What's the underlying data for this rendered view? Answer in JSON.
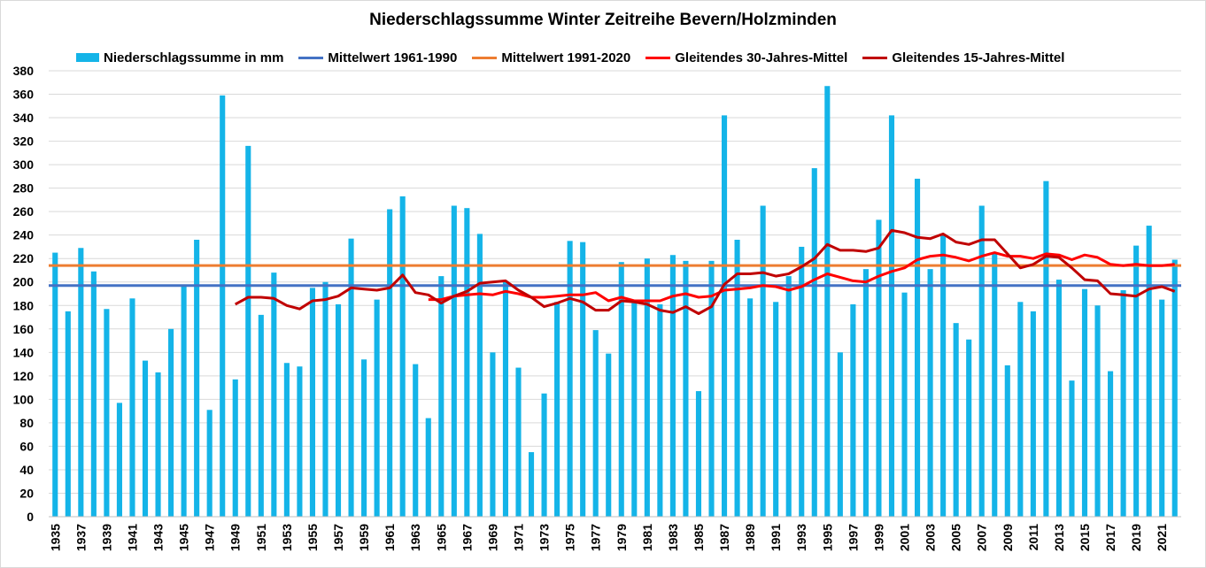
{
  "chart_data": {
    "type": "bar",
    "title": "Niederschlagssumme Winter Zeitreihe Bevern/Holzminden",
    "xlabel": "",
    "ylabel": "",
    "ylim": [
      0,
      380
    ],
    "yticks": [
      0,
      20,
      40,
      60,
      80,
      100,
      120,
      140,
      160,
      180,
      200,
      220,
      240,
      260,
      280,
      300,
      320,
      340,
      360,
      380
    ],
    "grid": true,
    "legend_position": "top",
    "x": [
      1935,
      1936,
      1937,
      1938,
      1939,
      1940,
      1941,
      1942,
      1943,
      1944,
      1945,
      1946,
      1947,
      1948,
      1949,
      1950,
      1951,
      1952,
      1953,
      1954,
      1955,
      1956,
      1957,
      1958,
      1959,
      1960,
      1961,
      1962,
      1963,
      1964,
      1965,
      1966,
      1967,
      1968,
      1969,
      1970,
      1971,
      1972,
      1973,
      1974,
      1975,
      1976,
      1977,
      1978,
      1979,
      1980,
      1981,
      1982,
      1983,
      1984,
      1985,
      1986,
      1987,
      1988,
      1989,
      1990,
      1991,
      1992,
      1993,
      1994,
      1995,
      1996,
      1997,
      1998,
      1999,
      2000,
      2001,
      2002,
      2003,
      2004,
      2005,
      2006,
      2007,
      2008,
      2009,
      2010,
      2011,
      2012,
      2013,
      2014,
      2015,
      2016,
      2017,
      2018,
      2019,
      2020,
      2021,
      2022
    ],
    "x_tick_labels": [
      "1935",
      "1937",
      "1939",
      "1941",
      "1943",
      "1945",
      "1947",
      "1949",
      "1951",
      "1953",
      "1955",
      "1957",
      "1959",
      "1961",
      "1963",
      "1965",
      "1967",
      "1969",
      "1971",
      "1973",
      "1975",
      "1977",
      "1979",
      "1981",
      "1983",
      "1985",
      "1987",
      "1989",
      "1991",
      "1993",
      "1995",
      "1997",
      "1999",
      "2001",
      "2003",
      "2005",
      "2007",
      "2009",
      "2011",
      "2013",
      "2015",
      "2017",
      "2019",
      "2021"
    ],
    "series": [
      {
        "name": "Niederschlagssumme in mm",
        "kind": "bar",
        "color": "#14b4e8",
        "values": [
          225,
          175,
          229,
          209,
          177,
          97,
          186,
          133,
          123,
          160,
          197,
          236,
          91,
          359,
          117,
          316,
          172,
          208,
          131,
          128,
          195,
          200,
          181,
          237,
          134,
          185,
          262,
          273,
          130,
          84,
          205,
          265,
          263,
          241,
          140,
          200,
          127,
          55,
          105,
          183,
          235,
          234,
          159,
          139,
          217,
          182,
          220,
          181,
          223,
          218,
          107,
          218,
          342,
          236,
          186,
          265,
          183,
          205,
          230,
          297,
          367,
          140,
          181,
          211,
          253,
          342,
          191,
          288,
          211,
          240,
          165,
          151,
          265,
          225,
          129,
          183,
          175,
          286,
          202,
          116,
          194,
          180,
          124,
          193,
          231,
          248,
          185,
          219
        ]
      },
      {
        "name": "Mittelwert 1961-1990",
        "kind": "hline",
        "color": "#4472c4",
        "value": 197
      },
      {
        "name": "Mittelwert 1991-2020",
        "kind": "hline",
        "color": "#ed7d31",
        "value": 214
      },
      {
        "name": "Gleitendes 30-Jahres-Mittel",
        "kind": "line",
        "color": "#ff0000",
        "x": [
          1964,
          1965,
          1966,
          1967,
          1968,
          1969,
          1970,
          1971,
          1972,
          1973,
          1974,
          1975,
          1976,
          1977,
          1978,
          1979,
          1980,
          1981,
          1982,
          1983,
          1984,
          1985,
          1986,
          1987,
          1988,
          1989,
          1990,
          1991,
          1992,
          1993,
          1994,
          1995,
          1996,
          1997,
          1998,
          1999,
          2000,
          2001,
          2002,
          2003,
          2004,
          2005,
          2006,
          2007,
          2008,
          2009,
          2010,
          2011,
          2012,
          2013,
          2014,
          2015,
          2016,
          2017,
          2018,
          2019,
          2020,
          2021,
          2022
        ],
        "values": [
          185,
          185,
          188,
          189,
          190,
          189,
          192,
          190,
          187,
          187,
          188,
          189,
          189,
          191,
          184,
          187,
          184,
          184,
          184,
          188,
          190,
          187,
          188,
          193,
          194,
          195,
          197,
          196,
          193,
          196,
          202,
          207,
          204,
          201,
          200,
          205,
          209,
          212,
          219,
          222,
          223,
          221,
          218,
          222,
          225,
          222,
          222,
          220,
          224,
          223,
          219,
          223,
          221,
          215,
          214,
          215,
          214,
          214,
          215
        ]
      },
      {
        "name": "Gleitendes 15-Jahres-Mittel",
        "kind": "line",
        "color": "#c00000",
        "x": [
          1949,
          1950,
          1951,
          1952,
          1953,
          1954,
          1955,
          1956,
          1957,
          1958,
          1959,
          1960,
          1961,
          1962,
          1963,
          1964,
          1965,
          1966,
          1967,
          1968,
          1969,
          1970,
          1971,
          1972,
          1973,
          1974,
          1975,
          1976,
          1977,
          1978,
          1979,
          1980,
          1981,
          1982,
          1983,
          1984,
          1985,
          1986,
          1987,
          1988,
          1989,
          1990,
          1991,
          1992,
          1993,
          1994,
          1995,
          1996,
          1997,
          1998,
          1999,
          2000,
          2001,
          2002,
          2003,
          2004,
          2005,
          2006,
          2007,
          2008,
          2009,
          2010,
          2011,
          2012,
          2013,
          2014,
          2015,
          2016,
          2017,
          2018,
          2019,
          2020,
          2021,
          2022
        ],
        "values": [
          181,
          187,
          187,
          186,
          180,
          177,
          184,
          185,
          188,
          195,
          194,
          193,
          195,
          206,
          191,
          189,
          182,
          188,
          192,
          199,
          200,
          201,
          193,
          187,
          179,
          182,
          186,
          183,
          176,
          176,
          184,
          183,
          181,
          176,
          174,
          179,
          173,
          179,
          198,
          207,
          207,
          208,
          205,
          207,
          213,
          220,
          232,
          227,
          227,
          226,
          229,
          244,
          242,
          238,
          237,
          241,
          234,
          232,
          236,
          236,
          224,
          212,
          215,
          222,
          221,
          212,
          202,
          201,
          190,
          189,
          188,
          194,
          196,
          192
        ]
      }
    ]
  }
}
